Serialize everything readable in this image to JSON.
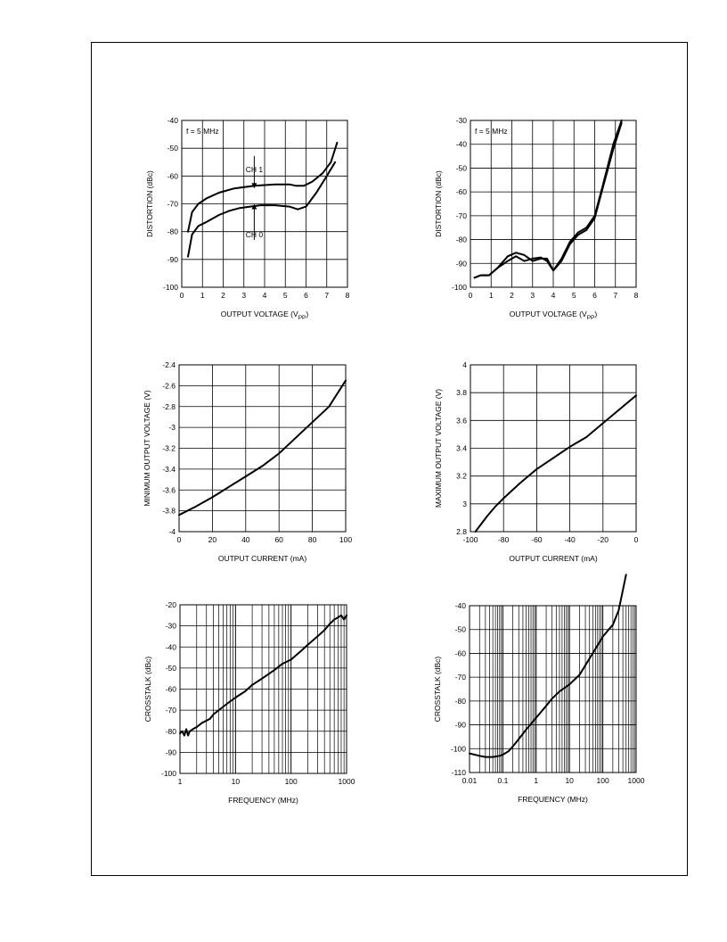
{
  "chart_data": [
    {
      "type": "line",
      "xlabel": "OUTPUT VOLTAGE (V",
      "xlabel_sub": "PP",
      "xlabel_end": ")",
      "ylabel": "DISTORTION (dBc)",
      "annotation": "f = 5 MHz",
      "xlim": [
        0,
        8
      ],
      "ylim": [
        -100,
        -40
      ],
      "xticks": [
        0,
        1,
        2,
        3,
        4,
        5,
        6,
        7,
        8
      ],
      "yticks": [
        -100,
        -90,
        -80,
        -70,
        -60,
        -50,
        -40
      ],
      "grid": true,
      "series": [
        {
          "name": "CH 1",
          "x": [
            0.3,
            0.5,
            0.8,
            1.2,
            1.8,
            2.5,
            3.5,
            4.5,
            5.2,
            5.5,
            5.9,
            6.3,
            6.8,
            7.2,
            7.5
          ],
          "y": [
            -80,
            -73,
            -70,
            -68,
            -66,
            -64.5,
            -63.5,
            -63,
            -63,
            -63.5,
            -63.5,
            -62,
            -59,
            -55,
            -48
          ]
        },
        {
          "name": "CH 0",
          "x": [
            0.3,
            0.5,
            0.8,
            1.2,
            1.8,
            2.3,
            2.8,
            3.3,
            3.8,
            4.5,
            5.2,
            5.6,
            6.0,
            6.5,
            7.0,
            7.4
          ],
          "y": [
            -89,
            -81,
            -78,
            -76.5,
            -74,
            -72.5,
            -71.5,
            -71,
            -70.5,
            -70.5,
            -71,
            -72,
            -71,
            -66,
            -60,
            -55
          ]
        }
      ],
      "labels": [
        "CH 1",
        "CH 0"
      ]
    },
    {
      "type": "line",
      "xlabel": "OUTPUT VOLTAGE (V",
      "xlabel_sub": "PP",
      "xlabel_end": ")",
      "ylabel": "DISTORTION (dBc)",
      "annotation": "f = 5 MHz",
      "xlim": [
        0,
        8
      ],
      "ylim": [
        -100,
        -30
      ],
      "xticks": [
        0,
        1,
        2,
        3,
        4,
        5,
        6,
        7,
        8
      ],
      "yticks": [
        -100,
        -90,
        -80,
        -70,
        -60,
        -50,
        -40,
        -30
      ],
      "grid": true,
      "series": [
        {
          "x": [
            0.2,
            0.5,
            0.9,
            1.3,
            1.8,
            2.2,
            2.6,
            3.0,
            3.4,
            3.7,
            4.0,
            4.4,
            4.8,
            5.2,
            5.6,
            6.0,
            6.4,
            6.9,
            7.3
          ],
          "y": [
            -96,
            -95,
            -95,
            -92,
            -89,
            -87,
            -89,
            -88,
            -87.5,
            -89,
            -93,
            -88,
            -81,
            -77,
            -75,
            -70,
            -57,
            -40,
            -30
          ]
        },
        {
          "x": [
            0.2,
            0.5,
            0.9,
            1.3,
            1.8,
            2.2,
            2.6,
            3.0,
            3.4,
            3.7,
            4.0,
            4.4,
            4.8,
            5.2,
            5.6,
            6.0,
            6.4,
            6.9,
            7.3
          ],
          "y": [
            -96,
            -95,
            -95,
            -92,
            -87,
            -85.5,
            -86.5,
            -89,
            -88,
            -88,
            -93,
            -89,
            -82,
            -78,
            -76,
            -71,
            -58,
            -42,
            -31
          ]
        }
      ]
    },
    {
      "type": "line",
      "xlabel": "OUTPUT CURRENT (mA)",
      "ylabel": "MINIMUM OUTPUT VOLTAGE (V)",
      "xlim": [
        0,
        100
      ],
      "ylim": [
        -4,
        -2.4
      ],
      "xticks": [
        0,
        20,
        40,
        60,
        80,
        100
      ],
      "yticks": [
        -4,
        -3.8,
        -3.6,
        -3.4,
        -3.2,
        -3,
        -2.8,
        -2.6,
        -2.4
      ],
      "grid": true,
      "series": [
        {
          "x": [
            0,
            10,
            20,
            30,
            40,
            50,
            60,
            70,
            80,
            90,
            100
          ],
          "y": [
            -3.84,
            -3.76,
            -3.67,
            -3.57,
            -3.47,
            -3.37,
            -3.25,
            -3.1,
            -2.95,
            -2.8,
            -2.55
          ]
        }
      ]
    },
    {
      "type": "line",
      "xlabel": "OUTPUT CURRENT (mA)",
      "ylabel": "MAXIMUM OUTPUT VOLTAGE (V)",
      "xlim": [
        -100,
        0
      ],
      "ylim": [
        2.8,
        4
      ],
      "xticks": [
        -100,
        -80,
        -60,
        -40,
        -20,
        0
      ],
      "yticks": [
        2.8,
        3,
        3.2,
        3.4,
        3.6,
        3.8,
        4
      ],
      "grid": true,
      "series": [
        {
          "x": [
            -97,
            -90,
            -85,
            -80,
            -70,
            -60,
            -50,
            -40,
            -30,
            -20,
            -10,
            0
          ],
          "y": [
            2.8,
            2.91,
            2.98,
            3.04,
            3.15,
            3.25,
            3.33,
            3.41,
            3.48,
            3.58,
            3.68,
            3.78
          ]
        }
      ]
    },
    {
      "type": "line",
      "xscale": "log",
      "xlabel": "FREQUENCY (MHz)",
      "ylabel": "CROSSTALK (dBc)",
      "xlim": [
        1,
        1000
      ],
      "ylim": [
        -100,
        -20
      ],
      "xticks": [
        1,
        10,
        100,
        1000
      ],
      "yticks": [
        -100,
        -90,
        -80,
        -70,
        -60,
        -50,
        -40,
        -30,
        -20
      ],
      "grid": true,
      "series": [
        {
          "x": [
            1,
            1.1,
            1.2,
            1.3,
            1.4,
            1.5,
            1.7,
            2,
            2.5,
            3,
            3.5,
            4,
            5,
            7,
            10,
            15,
            20,
            30,
            50,
            70,
            100,
            150,
            200,
            300,
            400,
            500,
            600,
            700,
            800,
            900,
            1000
          ],
          "y": [
            -81,
            -80,
            -82,
            -79,
            -82,
            -80,
            -79,
            -78,
            -76,
            -75,
            -74,
            -72,
            -70,
            -67,
            -64,
            -61,
            -58,
            -55,
            -51,
            -48,
            -46,
            -42,
            -39,
            -35,
            -32,
            -29,
            -27,
            -26,
            -25,
            -27,
            -25
          ]
        }
      ]
    },
    {
      "type": "line",
      "xscale": "log",
      "xlabel": "FREQUENCY (MHz)",
      "ylabel": "CROSSTALK (dBc)",
      "xlim": [
        0.01,
        1000
      ],
      "ylim": [
        -110,
        -40
      ],
      "xticks": [
        0.01,
        0.1,
        1,
        10,
        100,
        1000
      ],
      "xtick_labels": [
        "0.01",
        "0.1",
        "1",
        "10",
        "100",
        "1000"
      ],
      "yticks": [
        -110,
        -100,
        -90,
        -80,
        -70,
        -60,
        -50,
        -40
      ],
      "ytick_labels": [
        "-110",
        "-100",
        "-90",
        "-80",
        "-70",
        "-60",
        "-50",
        "-40"
      ],
      "grid": true,
      "series": [
        {
          "x": [
            0.01,
            0.02,
            0.03,
            0.05,
            0.08,
            0.1,
            0.15,
            0.2,
            0.3,
            0.5,
            1,
            2,
            3,
            5,
            10,
            20,
            30,
            50,
            100,
            150,
            200,
            300,
            500
          ],
          "y": [
            -102,
            -103,
            -103.5,
            -103.5,
            -103,
            -102.5,
            -101,
            -99,
            -96,
            -92,
            -87,
            -82,
            -79,
            -76,
            -73,
            -69,
            -65,
            -60,
            -53,
            -50,
            -48,
            -42,
            -27
          ]
        }
      ]
    }
  ]
}
